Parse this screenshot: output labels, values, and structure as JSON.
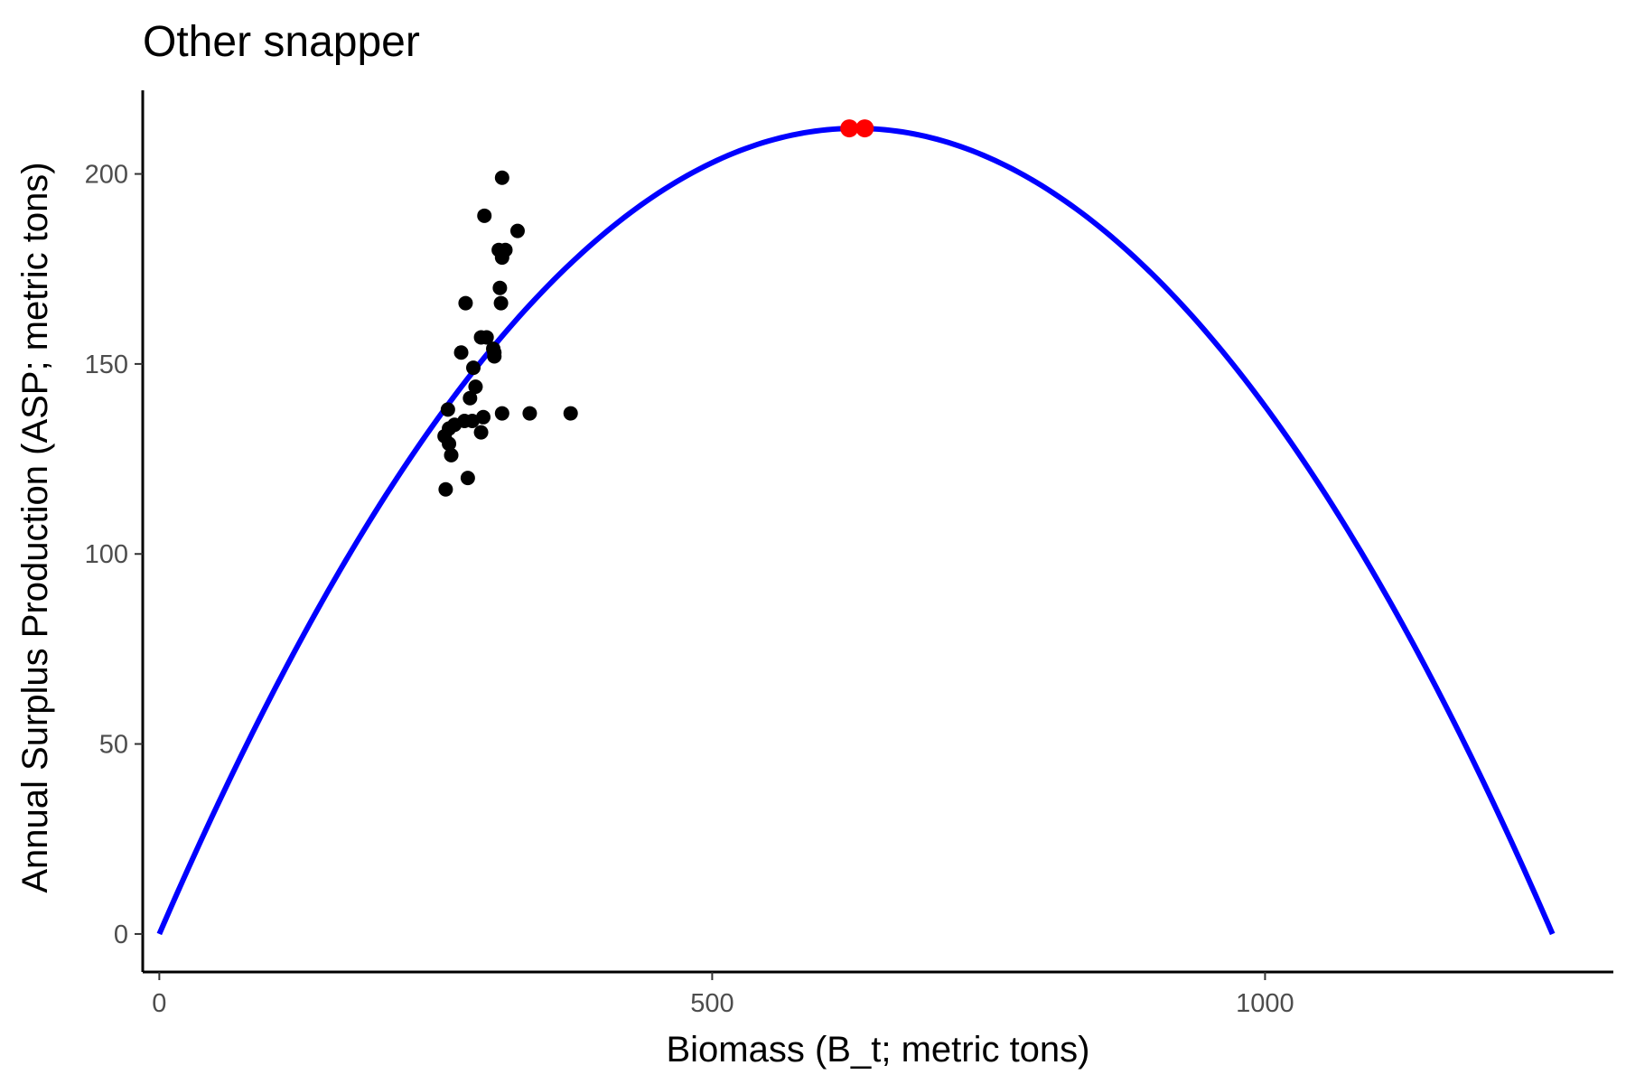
{
  "chart_data": {
    "type": "scatter",
    "title": "Other snapper",
    "xlabel": "Biomass (B_t; metric tons)",
    "ylabel": "Annual Surplus Production (ASP; metric tons)",
    "xlim": [
      -15,
      1315
    ],
    "ylim": [
      -10,
      222
    ],
    "grid": false,
    "legend": "none",
    "x_ticks": [
      0,
      500,
      1000
    ],
    "y_ticks": [
      0,
      50,
      100,
      150,
      200
    ],
    "curve": {
      "type": "line",
      "color": "#0000ff",
      "model": "parabola",
      "x_start": 0,
      "x_end": 1260,
      "peak_x": 630,
      "peak_y": 212
    },
    "points": {
      "color": "#000000",
      "x": [
        310,
        324,
        294,
        307,
        313,
        310,
        308,
        277,
        303,
        309,
        273,
        291,
        296,
        302,
        284,
        303,
        286,
        281,
        261,
        310,
        335,
        372,
        293,
        283,
        276,
        267,
        291,
        262,
        258,
        262,
        264,
        279,
        259
      ],
      "y": [
        199,
        185,
        189,
        180,
        180,
        178,
        170,
        166,
        153,
        166,
        153,
        157,
        157,
        154,
        149,
        152,
        144,
        141,
        138,
        137,
        137,
        137,
        136,
        135,
        135,
        134,
        132,
        133,
        131,
        129,
        126,
        120,
        117
      ]
    },
    "highlight_points": {
      "color": "#ff0000",
      "x": [
        624,
        638
      ],
      "y": [
        212,
        212
      ]
    }
  }
}
